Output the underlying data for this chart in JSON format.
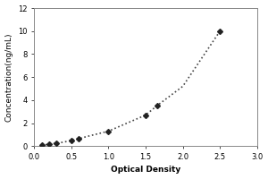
{
  "x_data": [
    0.1,
    0.2,
    0.3,
    0.4,
    0.5,
    0.6,
    0.75,
    1.0,
    1.25,
    1.5,
    1.65,
    2.0,
    2.5
  ],
  "y_data": [
    0.1,
    0.15,
    0.25,
    0.35,
    0.5,
    0.65,
    0.9,
    1.3,
    2.0,
    2.7,
    3.5,
    5.2,
    10.0
  ],
  "marker_points_x": [
    0.1,
    0.2,
    0.3,
    0.5,
    0.6,
    1.0,
    1.5,
    1.65,
    2.5
  ],
  "marker_points_y": [
    0.1,
    0.15,
    0.25,
    0.5,
    0.65,
    1.3,
    2.7,
    3.5,
    10.0
  ],
  "xlabel": "Optical Density",
  "ylabel": "Concentration(ng/mL)",
  "xlim": [
    0,
    3
  ],
  "ylim": [
    0,
    12
  ],
  "xticks": [
    0,
    0.5,
    1,
    1.5,
    2,
    2.5,
    3
  ],
  "yticks": [
    0,
    2,
    4,
    6,
    8,
    10,
    12
  ],
  "line_color": "#444444",
  "marker_color": "#222222",
  "background_color": "#ffffff",
  "line_style": "dotted",
  "line_width": 1.2,
  "marker_size": 3,
  "font_size_label": 6.5,
  "font_size_tick": 6,
  "border_color": "#888888"
}
